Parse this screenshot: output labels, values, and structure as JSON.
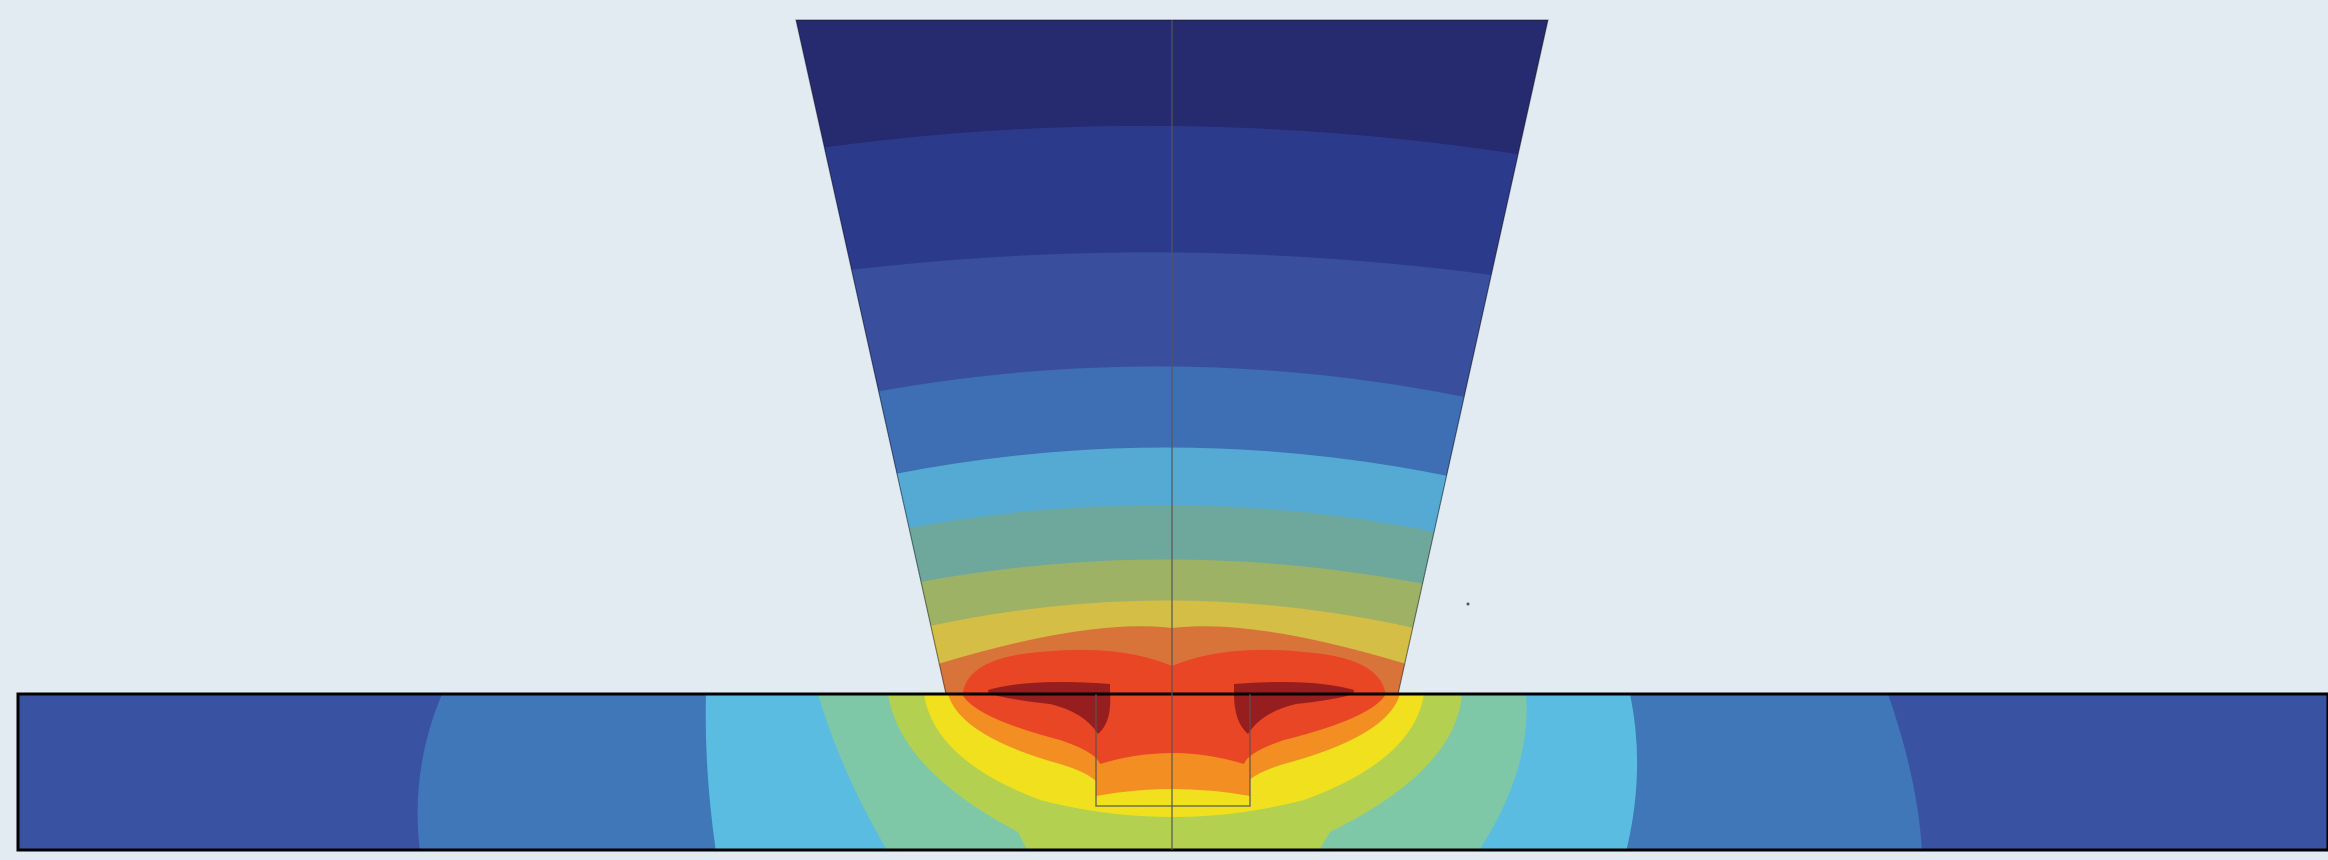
{
  "figure": {
    "description_hidden": "",
    "background_color": "#e2ebf2",
    "outline_color": "#000000",
    "centerline_color": "#555555",
    "palette": {
      "c1": "#262a6e",
      "c2": "#2c3a8c",
      "c3": "#3a4e9e",
      "c4": "#3e6eb4",
      "c5": "#55aad4",
      "c6": "#6ea89c",
      "c7": "#9eb266",
      "c8": "#d4be46",
      "c9": "#d8743a",
      "c10": "#e84624",
      "c11": "#961e1e",
      "c12": "#f28e22",
      "c13": "#f0e01e",
      "c14": "#b4d050",
      "c15": "#7ec8a8",
      "c16": "#5abce0",
      "c17": "#3f77b9",
      "c18": "#3a52a2"
    }
  }
}
